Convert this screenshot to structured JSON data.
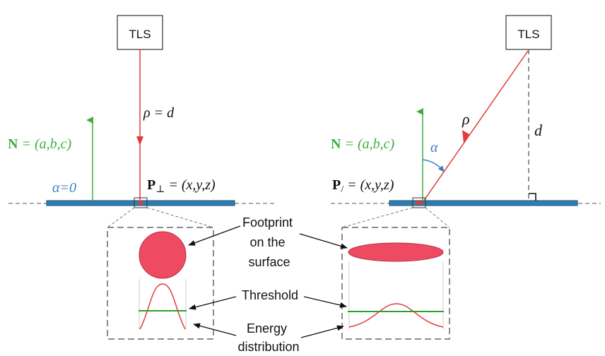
{
  "colors": {
    "beam": "#e23b3b",
    "normal": "#3fae3f",
    "surface": "#2d7fb3",
    "angle": "#3a7ec6",
    "footprint_fill": "#ee4b63",
    "threshold": "#2ca02c",
    "energy": "#e23b3b",
    "box_border": "#666666",
    "text": "#111111"
  },
  "left": {
    "scanner_label": "TLS",
    "range_label": "ρ = d",
    "normal_label": {
      "bold": "N",
      "rest": " = (a,b,c)"
    },
    "alpha_label": "α=0",
    "point_label": {
      "bold": "P",
      "sub": "⊥",
      "rest": " = (x,y,z)"
    }
  },
  "right": {
    "scanner_label": "TLS",
    "range_label": "ρ",
    "distance_label": "d",
    "normal_label": {
      "bold": "N",
      "rest": " = (a,b,c)"
    },
    "alpha_label": "α",
    "point_label": {
      "bold": "P",
      "sub": "/",
      "rest": " = (x,y,z)"
    }
  },
  "annotations": {
    "footprint": [
      "Footprint",
      "on the",
      "surface"
    ],
    "threshold": "Threshold",
    "energy": [
      "Energy",
      "distribution"
    ]
  }
}
